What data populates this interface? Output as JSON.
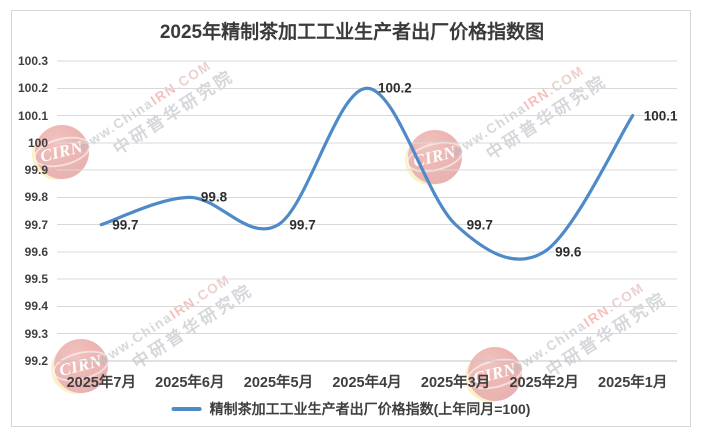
{
  "window": {
    "background": "#ffffff",
    "frame_border_color": "#d6d6d6"
  },
  "chart_data": {
    "type": "line",
    "title": "2025年精制茶加工工业生产者出厂价格指数图",
    "categories": [
      "2025年7月",
      "2025年6月",
      "2025年5月",
      "2025年4月",
      "2025年3月",
      "2025年2月",
      "2025年1月"
    ],
    "series": [
      {
        "name": "精制茶加工工业生产者出厂价格指数(上年同月=100)",
        "values": [
          99.7,
          99.8,
          99.7,
          100.2,
          99.7,
          99.6,
          100.1
        ],
        "color": "#4e8ac8"
      }
    ],
    "data_labels": [
      "99.7",
      "99.8",
      "99.7",
      "100.2",
      "99.7",
      "99.6",
      "100.1"
    ],
    "ylim": [
      99.2,
      100.3
    ],
    "ytick_step": 0.1,
    "ytick_labels": [
      "100.3",
      "100.2",
      "100.1",
      "100",
      "99.9",
      "99.8",
      "99.7",
      "99.6",
      "99.5",
      "99.4",
      "99.3",
      "99.2"
    ],
    "xlabel": "",
    "ylabel": "",
    "grid": true,
    "gridline_color": "#d9d9d9",
    "axis_line_color": "#c3c3c3",
    "legend_position": "bottom",
    "smooth": true
  },
  "watermark": {
    "logo_text": "CIRN",
    "url_prefix": "www.China",
    "url_highlight": "IRN",
    "url_suffix": ".COM",
    "cn_text": "中研普华研究院",
    "colors": {
      "gray": "#b3b8bf",
      "red": "#ef8c86",
      "pink": "#dbaaa8",
      "ball": "#cf4a43",
      "crescent": "#f3cf4e"
    }
  }
}
